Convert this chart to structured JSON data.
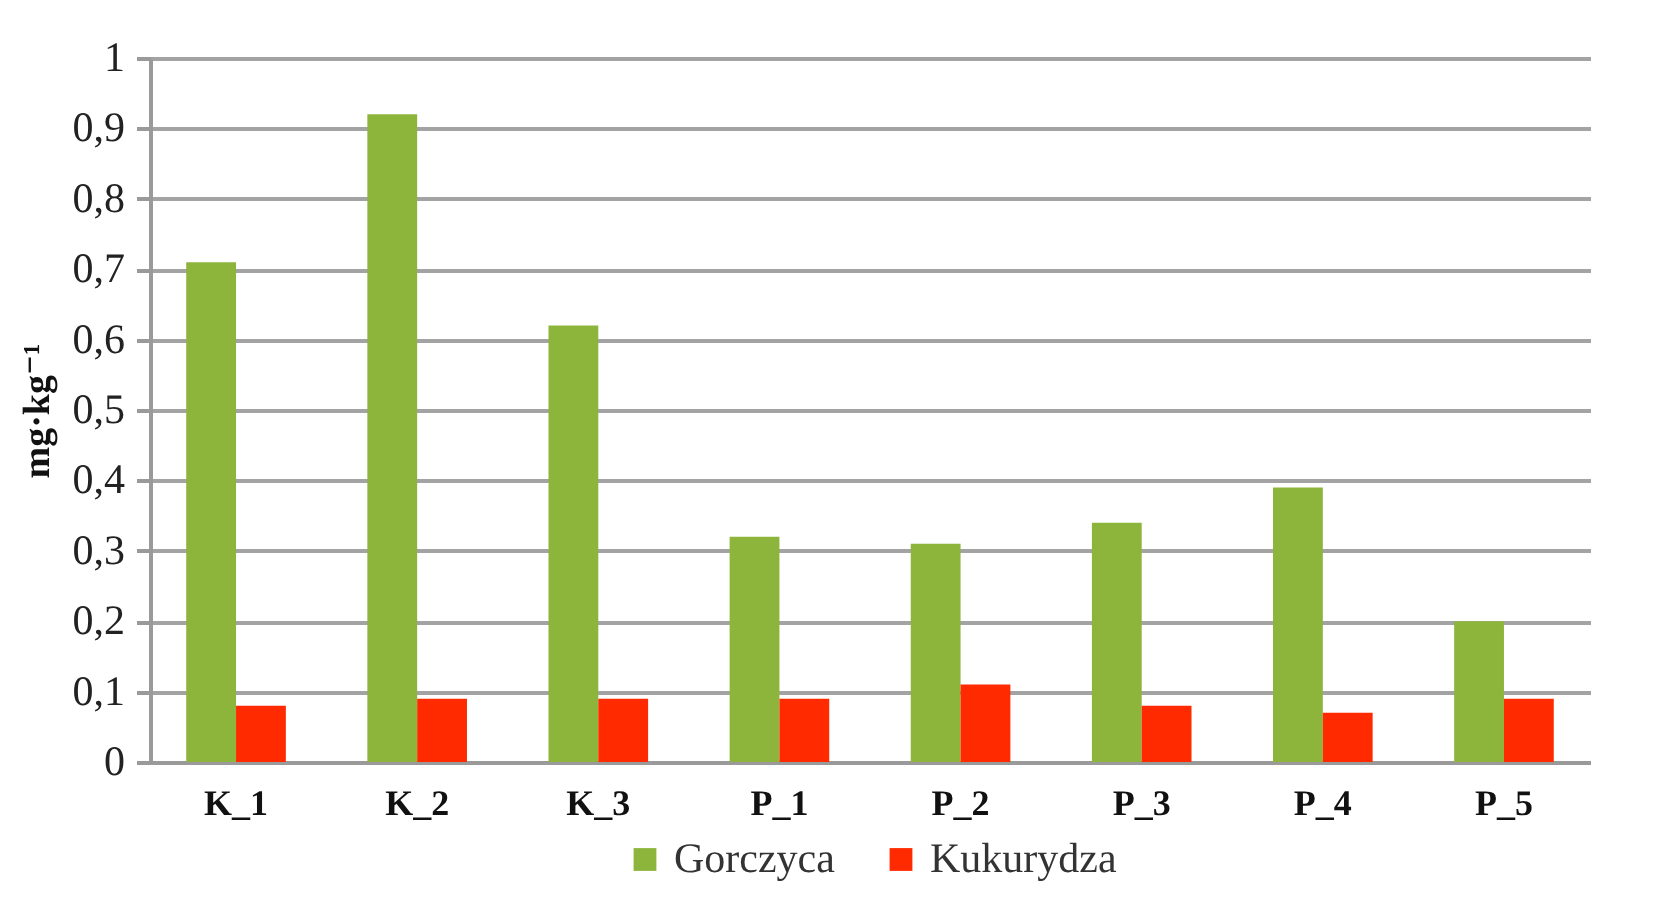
{
  "chart_data": {
    "type": "bar",
    "ylabel": "mg·kg⁻¹",
    "categories": [
      "K_1",
      "K_2",
      "K_3",
      "P_1",
      "P_2",
      "P_3",
      "P_4",
      "P_5"
    ],
    "series": [
      {
        "name": "Gorczyca",
        "color": "#8db53c",
        "values": [
          0.71,
          0.92,
          0.62,
          0.32,
          0.31,
          0.34,
          0.39,
          0.2
        ]
      },
      {
        "name": "Kukurydza",
        "color": "#ff2a00",
        "values": [
          0.08,
          0.09,
          0.09,
          0.09,
          0.11,
          0.08,
          0.07,
          0.09
        ]
      }
    ],
    "ylim": [
      0,
      1
    ],
    "yticks": [
      0,
      {
        "value": 0.1,
        "label": "0,1"
      },
      {
        "value": 0.2,
        "label": "0,2"
      },
      {
        "value": 0.3,
        "label": "0,3"
      },
      {
        "value": 0.4,
        "label": "0,4"
      },
      {
        "value": 0.5,
        "label": "0,5"
      },
      {
        "value": 0.6,
        "label": "0,6"
      },
      {
        "value": 0.7,
        "label": "0,7"
      },
      {
        "value": 0.8,
        "label": "0,8"
      },
      {
        "value": 0.9,
        "label": "0,9"
      },
      1
    ],
    "grid": "y",
    "legend": "bottom"
  }
}
